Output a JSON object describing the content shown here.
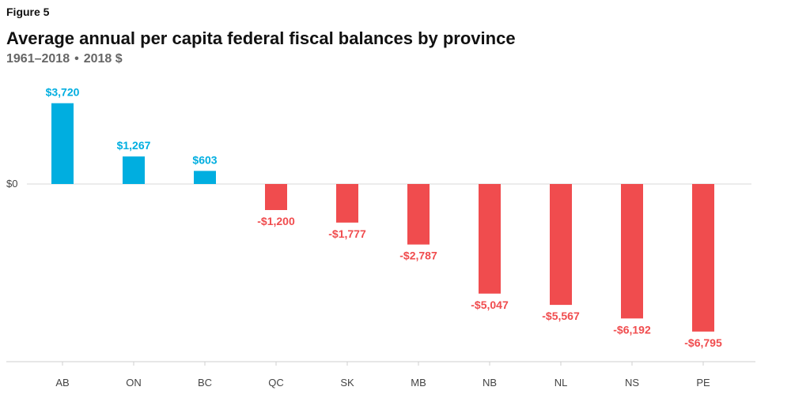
{
  "figure_label": "Figure 5",
  "colors": {
    "positive": "#00aee0",
    "negative": "#f04c4e",
    "zero_line": "#d8d8d8",
    "axis": "#cfcfcf",
    "text": "#444444"
  },
  "chart_data": {
    "type": "bar",
    "title": "Average annual per capita federal fiscal balances by province",
    "subtitle_period": "1961–2018",
    "subtitle_units": "2018 $",
    "xlabel": "",
    "ylabel": "",
    "y_tick_label": "$0",
    "categories": [
      "AB",
      "ON",
      "BC",
      "QC",
      "SK",
      "MB",
      "NB",
      "NL",
      "NS",
      "PE"
    ],
    "values": [
      3720,
      1267,
      603,
      -1200,
      -1777,
      -2787,
      -5047,
      -5567,
      -6192,
      -6795
    ],
    "value_labels": [
      "$3,720",
      "$1,267",
      "$603",
      "-$1,200",
      "-$1,777",
      "-$2,787",
      "-$5,047",
      "-$5,567",
      "-$6,192",
      "-$6,795"
    ],
    "ylim": [
      -8200,
      4300
    ]
  }
}
